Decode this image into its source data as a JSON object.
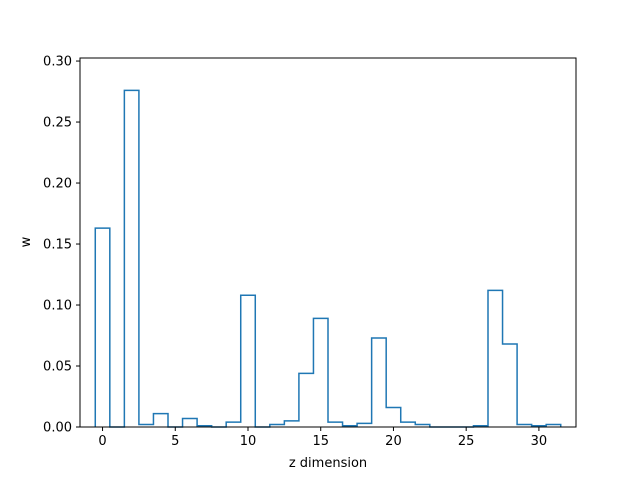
{
  "chart_data": {
    "type": "bar",
    "style": "step",
    "xlabel": "z dimension",
    "ylabel": "w",
    "xlim": [
      -1.55,
      32.55
    ],
    "ylim": [
      0,
      0.3025
    ],
    "xticks": [
      0,
      5,
      10,
      15,
      20,
      25,
      30
    ],
    "yticks": [
      0.0,
      0.05,
      0.1,
      0.15,
      0.2,
      0.25,
      0.3
    ],
    "xtick_labels": [
      "0",
      "5",
      "10",
      "15",
      "20",
      "25",
      "30"
    ],
    "ytick_labels": [
      "0.00",
      "0.05",
      "0.10",
      "0.15",
      "0.20",
      "0.25",
      "0.30"
    ],
    "series": [
      {
        "color": "#1f77b4",
        "x": [
          0,
          1,
          2,
          3,
          4,
          5,
          6,
          7,
          8,
          9,
          10,
          11,
          12,
          13,
          14,
          15,
          16,
          17,
          18,
          19,
          20,
          21,
          22,
          23,
          24,
          25,
          26,
          27,
          28,
          29,
          30,
          31
        ],
        "values": [
          0.163,
          0.0,
          0.276,
          0.002,
          0.011,
          0.0,
          0.007,
          0.001,
          0.0,
          0.004,
          0.108,
          0.0,
          0.002,
          0.005,
          0.044,
          0.089,
          0.004,
          0.001,
          0.003,
          0.073,
          0.016,
          0.004,
          0.002,
          0.0,
          0.0,
          0.0,
          0.001,
          0.112,
          0.068,
          0.002,
          0.001,
          0.002
        ]
      }
    ]
  }
}
